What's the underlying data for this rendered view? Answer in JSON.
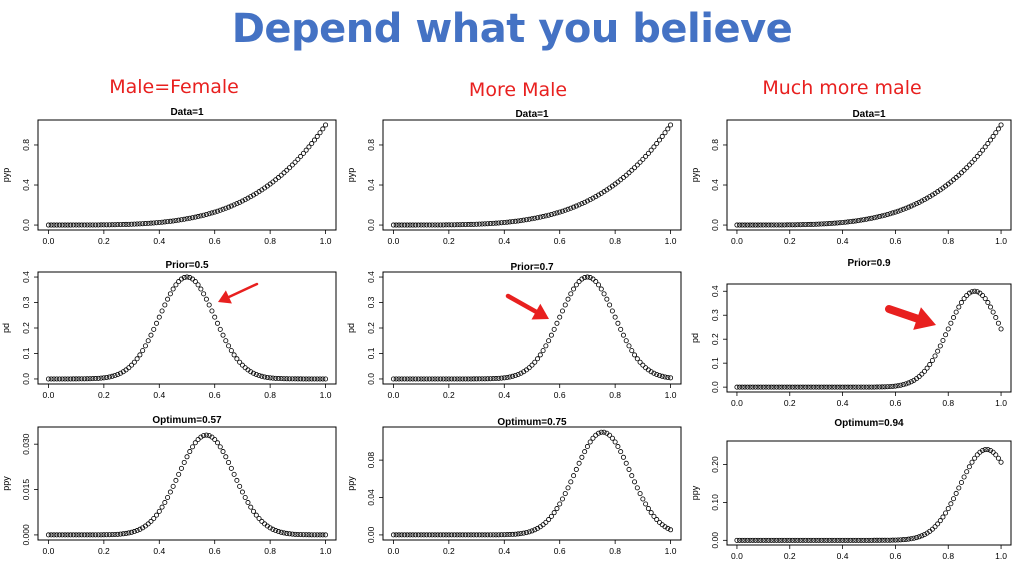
{
  "slide": {
    "title": "Depend what you believe",
    "columns": [
      {
        "heading": "Male=Female"
      },
      {
        "heading": "More Male"
      },
      {
        "heading": "Much more male"
      }
    ]
  },
  "colors": {
    "title": "#4472c4",
    "heading": "#e8201f",
    "arrow": "#e8201f",
    "marker": "#000000"
  },
  "chart_data": [
    {
      "type": "scatter",
      "column": 1,
      "row": 1,
      "title": "Data=1",
      "ylabel": "pyp",
      "xlim": [
        0,
        1
      ],
      "ylim": [
        0,
        1
      ],
      "xticks": [
        "0.0",
        "0.2",
        "0.4",
        "0.6",
        "0.8",
        "1.0"
      ],
      "yticks": [
        "0.0",
        "0.4",
        "0.8"
      ],
      "curve": {
        "kind": "power",
        "exponent": 4,
        "scale": 1,
        "n": 101
      }
    },
    {
      "type": "scatter",
      "column": 1,
      "row": 2,
      "title": "Prior=0.5",
      "ylabel": "pd",
      "xlim": [
        0,
        1
      ],
      "ylim": [
        0,
        0.4
      ],
      "xticks": [
        "0.0",
        "0.2",
        "0.4",
        "0.6",
        "0.8",
        "1.0"
      ],
      "yticks": [
        "0.0",
        "0.1",
        "0.2",
        "0.3",
        "0.4"
      ],
      "curve": {
        "kind": "gaussian",
        "mean": 0.5,
        "sd": 0.1,
        "peak": 0.4,
        "n": 101
      }
    },
    {
      "type": "scatter",
      "column": 1,
      "row": 3,
      "title": "Optimum=0.57",
      "ylabel": "ppy",
      "xlim": [
        0,
        1
      ],
      "ylim": [
        0,
        0.034
      ],
      "xticks": [
        "0.0",
        "0.2",
        "0.4",
        "0.6",
        "0.8",
        "1.0"
      ],
      "yticks": [
        "0.000",
        "0.015",
        "0.030"
      ],
      "curve": {
        "kind": "gaussian",
        "mean": 0.57,
        "sd": 0.1,
        "peak": 0.033,
        "n": 101
      }
    },
    {
      "type": "scatter",
      "column": 2,
      "row": 1,
      "title": "Data=1",
      "ylabel": "pyp",
      "xlim": [
        0,
        1
      ],
      "ylim": [
        0,
        1
      ],
      "xticks": [
        "0.0",
        "0.2",
        "0.4",
        "0.6",
        "0.8",
        "1.0"
      ],
      "yticks": [
        "0.0",
        "0.4",
        "0.8"
      ],
      "curve": {
        "kind": "power",
        "exponent": 4,
        "scale": 1,
        "n": 101
      }
    },
    {
      "type": "scatter",
      "column": 2,
      "row": 2,
      "title": "Prior=0.7",
      "ylabel": "pd",
      "xlim": [
        0,
        1
      ],
      "ylim": [
        0,
        0.4
      ],
      "xticks": [
        "0.0",
        "0.2",
        "0.4",
        "0.6",
        "0.8",
        "1.0"
      ],
      "yticks": [
        "0.0",
        "0.1",
        "0.2",
        "0.3",
        "0.4"
      ],
      "curve": {
        "kind": "gaussian",
        "mean": 0.7,
        "sd": 0.1,
        "peak": 0.4,
        "n": 101
      }
    },
    {
      "type": "scatter",
      "column": 2,
      "row": 3,
      "title": "Optimum=0.75",
      "ylabel": "ppy",
      "xlim": [
        0,
        1
      ],
      "ylim": [
        0,
        0.11
      ],
      "xticks": [
        "0.0",
        "0.2",
        "0.4",
        "0.6",
        "0.8",
        "1.0"
      ],
      "yticks": [
        "0.00",
        "0.04",
        "0.08"
      ],
      "curve": {
        "kind": "gaussian",
        "mean": 0.755,
        "sd": 0.1,
        "peak": 0.11,
        "n": 101
      }
    },
    {
      "type": "scatter",
      "column": 3,
      "row": 1,
      "title": "Data=1",
      "ylabel": "pyp",
      "xlim": [
        0,
        1
      ],
      "ylim": [
        0,
        1
      ],
      "xticks": [
        "0.0",
        "0.2",
        "0.4",
        "0.6",
        "0.8",
        "1.0"
      ],
      "yticks": [
        "0.0",
        "0.4",
        "0.8"
      ],
      "curve": {
        "kind": "power",
        "exponent": 4,
        "scale": 1,
        "n": 101
      }
    },
    {
      "type": "scatter",
      "column": 3,
      "row": 2,
      "title": "Prior=0.9",
      "ylabel": "pd",
      "xlim": [
        0,
        1
      ],
      "ylim": [
        0,
        0.41
      ],
      "xticks": [
        "0.0",
        "0.2",
        "0.4",
        "0.6",
        "0.8",
        "1.0"
      ],
      "yticks": [
        "0.0",
        "0.1",
        "0.2",
        "0.3",
        "0.4"
      ],
      "curve": {
        "kind": "gaussian",
        "mean": 0.9,
        "sd": 0.1,
        "peak": 0.4,
        "n": 101
      }
    },
    {
      "type": "scatter",
      "column": 3,
      "row": 3,
      "title": "Optimum=0.94",
      "ylabel": "ppy",
      "xlim": [
        0,
        1
      ],
      "ylim": [
        0,
        0.25
      ],
      "xticks": [
        "0.0",
        "0.2",
        "0.4",
        "0.6",
        "0.8",
        "1.0"
      ],
      "yticks": [
        "0.00",
        "0.10",
        "0.20"
      ],
      "curve": {
        "kind": "gaussian",
        "mean": 0.945,
        "sd": 0.1,
        "peak": 0.24,
        "n": 101
      }
    }
  ]
}
